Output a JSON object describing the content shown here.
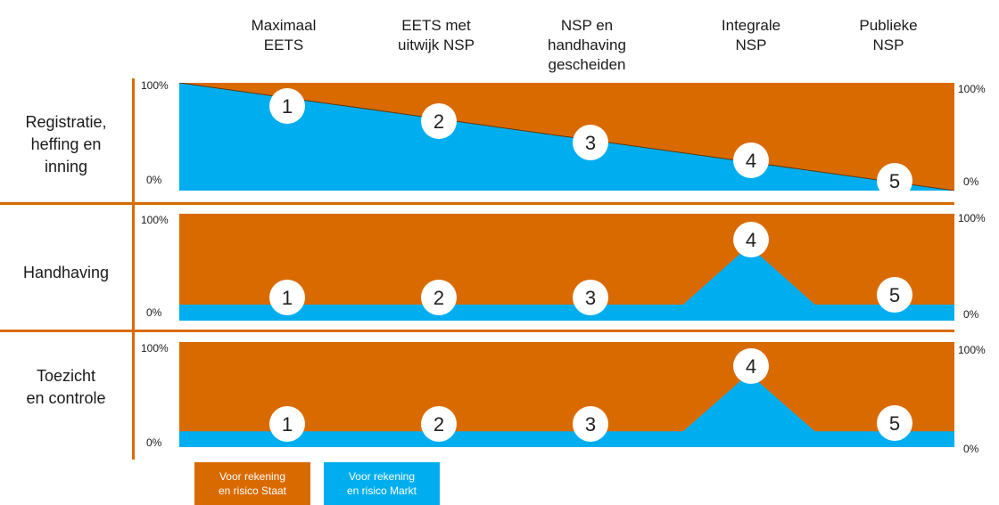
{
  "columns": [
    "Maximaal\nEETS",
    "EETS met\nuitwijk NSP",
    "NSP en\nhandhaving\ngescheiden",
    "Integrale\nNSP",
    "Publieke\nNSP"
  ],
  "rows": [
    "Registratie,\nheffing en\ninning",
    "Handhaving",
    "Toezicht\nen controle"
  ],
  "ticks": {
    "top": "100%",
    "bottom": "0%"
  },
  "legend": [
    {
      "label": "Voor rekening\nen risico Staat",
      "color": "#d96a00"
    },
    {
      "label": "Voor rekening\nen risico Markt",
      "color": "#00aeef"
    }
  ],
  "colors": {
    "staat": "#d96a00",
    "markt": "#00aeef",
    "accent_line": "#d96a00"
  },
  "chart_data": [
    {
      "type": "area",
      "title": "Registratie, heffing en inning",
      "x": [
        0,
        1
      ],
      "series": [
        {
          "name": "Voor rekening en risico Markt",
          "values": [
            100,
            0
          ]
        }
      ],
      "ylim": [
        0,
        100
      ],
      "markers": [
        {
          "label": "1"
        },
        {
          "label": "2"
        },
        {
          "label": "3"
        },
        {
          "label": "4"
        },
        {
          "label": "5"
        }
      ]
    },
    {
      "type": "area",
      "title": "Handhaving",
      "x": [
        0,
        0.65,
        0.735,
        0.82,
        1
      ],
      "series": [
        {
          "name": "Voor rekening en risico Markt",
          "values": [
            15,
            15,
            70,
            15,
            15
          ]
        }
      ],
      "ylim": [
        0,
        100
      ],
      "markers": [
        {
          "label": "1"
        },
        {
          "label": "2"
        },
        {
          "label": "3"
        },
        {
          "label": "4"
        },
        {
          "label": "5"
        }
      ]
    },
    {
      "type": "area",
      "title": "Toezicht en controle",
      "x": [
        0,
        0.65,
        0.735,
        0.82,
        1
      ],
      "series": [
        {
          "name": "Voor rekening en risico Markt",
          "values": [
            15,
            15,
            70,
            15,
            15
          ]
        }
      ],
      "ylim": [
        0,
        100
      ],
      "markers": [
        {
          "label": "1"
        },
        {
          "label": "2"
        },
        {
          "label": "3"
        },
        {
          "label": "4"
        },
        {
          "label": "5"
        }
      ]
    }
  ]
}
